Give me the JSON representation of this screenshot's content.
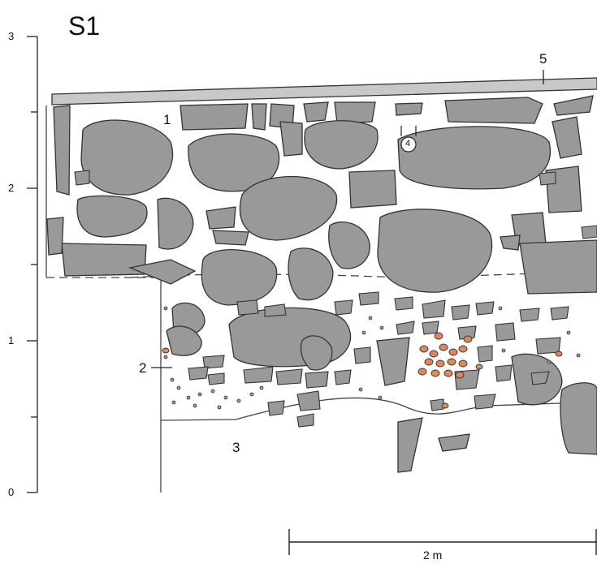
{
  "title": "S1",
  "vertical_scale": {
    "ticks": [
      "3",
      "2",
      "1",
      "0"
    ]
  },
  "layer_labels": {
    "one": "1",
    "two": "2",
    "three": "3",
    "four": "4",
    "five": "5"
  },
  "scale_bar": {
    "label": "2 m"
  },
  "colors": {
    "stone_fill": "#999999",
    "stone_outline": "#333333",
    "charcoal_fill": "#e0875a",
    "plank_fill": "#c8c8c8"
  }
}
